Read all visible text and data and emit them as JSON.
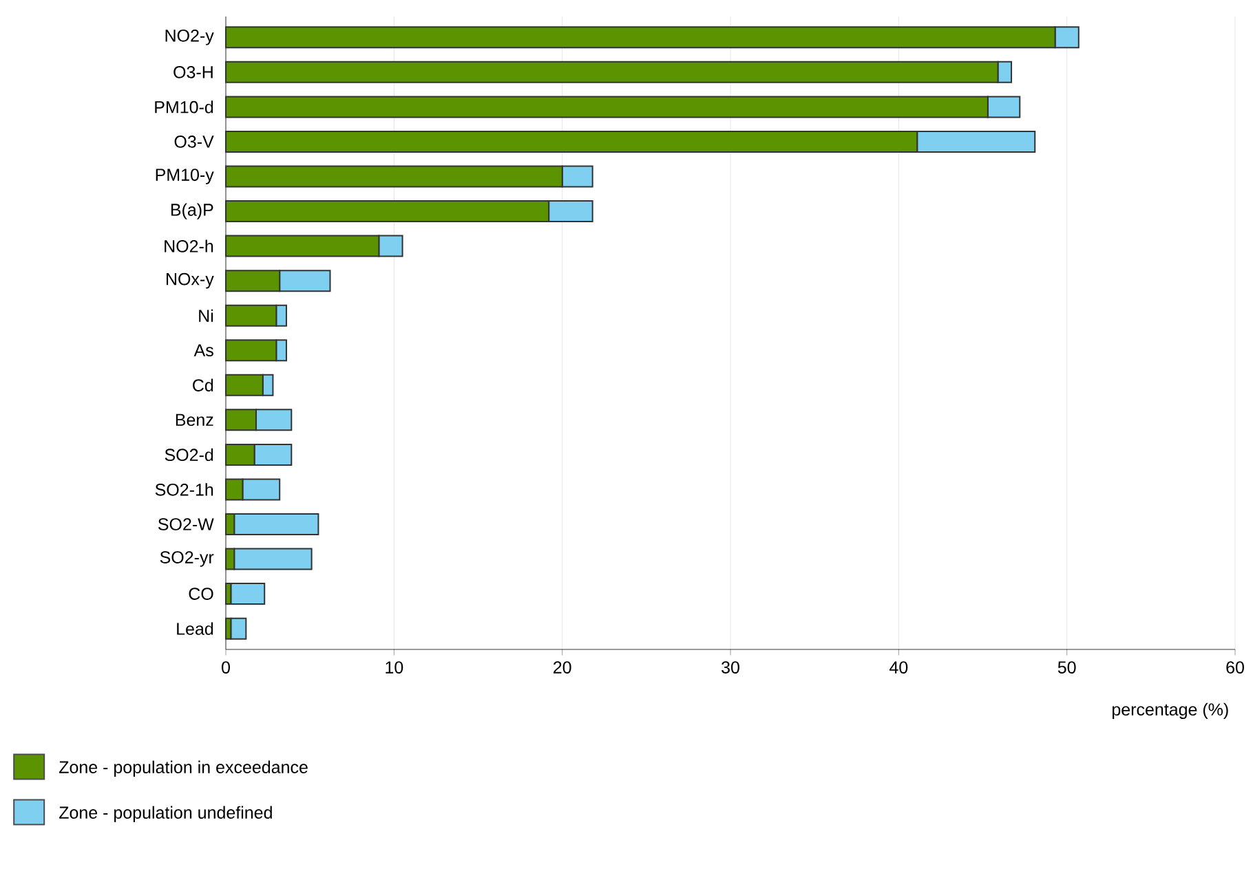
{
  "chart_data": {
    "type": "bar",
    "orientation": "horizontal",
    "stacked": true,
    "categories": [
      "NO2-y",
      "O3-H",
      "PM10-d",
      "O3-V",
      "PM10-y",
      "B(a)P",
      "NO2-h",
      "NOx-y",
      "Ni",
      "As",
      "Cd",
      "Benz",
      "SO2-d",
      "SO2-1h",
      "SO2-W",
      "SO2-yr",
      "CO",
      "Lead"
    ],
    "series": [
      {
        "name": "Zone - population in exceedance",
        "color": "#5b9400",
        "values": [
          49.3,
          45.9,
          45.3,
          41.1,
          20.0,
          19.2,
          9.1,
          3.2,
          3.0,
          3.0,
          2.2,
          1.8,
          1.7,
          1.0,
          0.5,
          0.5,
          0.3,
          0.3
        ]
      },
      {
        "name": "Zone - population undefined",
        "color": "#7fd0f0",
        "values": [
          1.4,
          0.8,
          1.9,
          7.0,
          1.8,
          2.6,
          1.4,
          3.0,
          0.6,
          0.6,
          0.6,
          2.1,
          2.2,
          2.2,
          5.0,
          4.6,
          2.0,
          0.9
        ]
      }
    ],
    "xlabel": "percentage (%)",
    "xlim": [
      0,
      60
    ],
    "xticks": [
      0,
      10,
      20,
      30,
      40,
      50,
      60
    ],
    "grid": "x",
    "legend": "bottom left"
  }
}
